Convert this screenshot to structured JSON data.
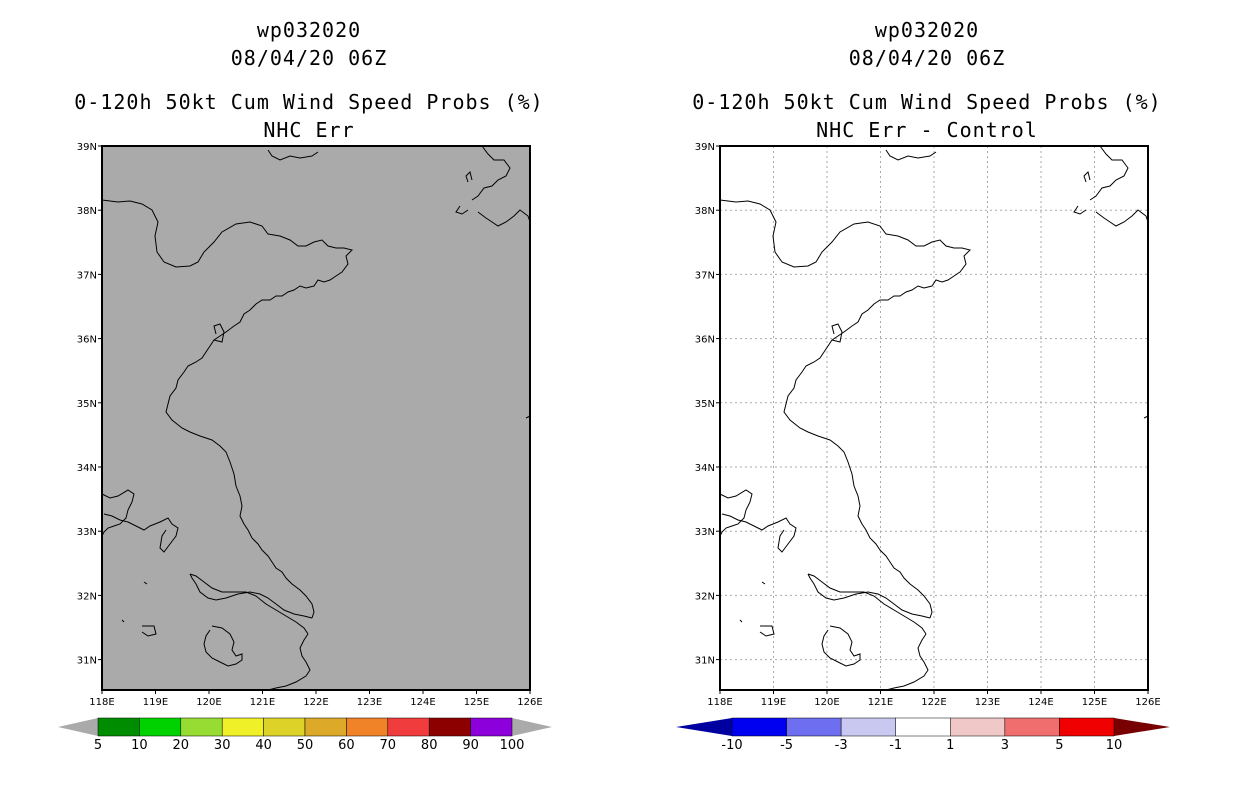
{
  "panels": [
    {
      "title_lines": [
        "wp032020",
        "08/04/20 06Z",
        "0-120h 50kt Cum Wind Speed Probs (%)",
        "NHC Err"
      ],
      "map_fill": "#aaaaaa",
      "grid": false,
      "colorbar": {
        "labels": [
          "5",
          "10",
          "20",
          "30",
          "40",
          "50",
          "60",
          "70",
          "80",
          "90",
          "100"
        ],
        "colors": [
          "#008c00",
          "#00d200",
          "#96dc32",
          "#f0f028",
          "#dcd228",
          "#dcaa28",
          "#f08228",
          "#f03c3c",
          "#8c0000",
          "#8c00dc"
        ],
        "end_colors": [
          "#aaaaaa",
          "#aaaaaa"
        ]
      }
    },
    {
      "title_lines": [
        "wp032020",
        "08/04/20 06Z",
        "0-120h 50kt Cum Wind Speed Probs (%)",
        "NHC Err - Control"
      ],
      "map_fill": "#ffffff",
      "grid": true,
      "colorbar": {
        "labels": [
          "-10",
          "-5",
          "-3",
          "-1",
          "1",
          "3",
          "5",
          "10"
        ],
        "colors": [
          "#0000f0",
          "#6e6ef0",
          "#c8c8f0",
          "#ffffff",
          "#f0c8c8",
          "#f06e6e",
          "#f00000"
        ],
        "end_colors": [
          "#0000a0",
          "#780000"
        ]
      }
    }
  ],
  "map": {
    "lon_labels": [
      "118E",
      "119E",
      "120E",
      "121E",
      "122E",
      "123E",
      "124E",
      "125E",
      "126E"
    ],
    "lat_labels": [
      "39N",
      "38N",
      "37N",
      "36N",
      "35N",
      "34N",
      "33N",
      "32N",
      "31N"
    ]
  }
}
